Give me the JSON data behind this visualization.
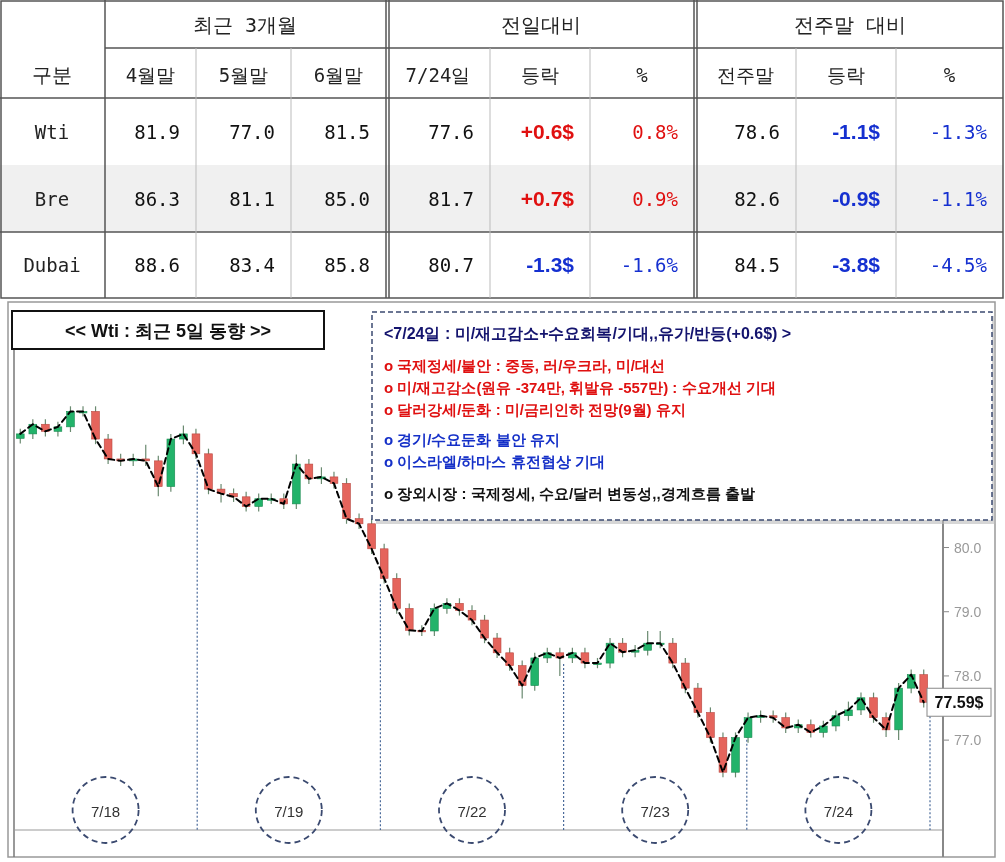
{
  "chart_data": [
    {
      "type": "heatmap",
      "annotations": [
        "구분",
        "최근 3개월",
        "전일대비",
        "전주말 대비"
      ],
      "categories": [
        "4월말",
        "5월말",
        "6월말",
        "7/24일",
        "등락",
        "%",
        "전주말",
        "등락",
        "%"
      ],
      "y_categories": [
        "Wti",
        "Bre",
        "Dubai"
      ],
      "cells": [
        [
          81.9,
          77.0,
          81.5,
          77.6,
          0.6,
          0.8,
          78.6,
          -1.1,
          -1.3
        ],
        [
          86.3,
          81.1,
          85.0,
          81.7,
          0.7,
          0.9,
          82.6,
          -0.9,
          -1.1
        ],
        [
          88.6,
          83.4,
          85.8,
          80.7,
          -1.3,
          -1.6,
          84.5,
          -3.8,
          -4.5
        ]
      ],
      "cell_labels": [
        [
          "81.9",
          "77.0",
          "81.5",
          "77.6",
          "+0.6$",
          "0.8%",
          "78.6",
          "-1.1$",
          "-1.3%"
        ],
        [
          "86.3",
          "81.1",
          "85.0",
          "81.7",
          "+0.7$",
          "0.9%",
          "82.6",
          "-0.9$",
          "-1.1%"
        ],
        [
          "88.6",
          "83.4",
          "85.8",
          "80.7",
          "-1.3$",
          "-1.6%",
          "84.5",
          "-3.8$",
          "-4.5%"
        ]
      ]
    },
    {
      "type": "candlestick",
      "title": "<< Wti : 최근 5일 동향 >>",
      "colors": [
        "#22b36a",
        "#22b36a",
        "#e5645c",
        "#22b36a",
        "#22b36a",
        "#22b36a",
        "#e5645c",
        "#e5645c",
        "#e5645c",
        "#22b36a",
        "#e5645c",
        "#e5645c",
        "#22b36a",
        "#22b36a",
        "#e5645c",
        "#e5645c",
        "#e5645c",
        "#e5645c",
        "#e5645c",
        "#22b36a",
        "#22b36a",
        "#e5645c",
        "#22b36a",
        "#e5645c",
        "#22b36a",
        "#e5645c",
        "#e5645c",
        "#e5645c",
        "#e5645c",
        "#e5645c",
        "#e5645c",
        "#e5645c",
        "#e5645c",
        "#22b36a",
        "#22b36a",
        "#e5645c",
        "#e5645c",
        "#e5645c",
        "#e5645c",
        "#e5645c",
        "#e5645c",
        "#22b36a",
        "#22b36a",
        "#e5645c",
        "#22b36a",
        "#e5645c",
        "#22b36a",
        "#22b36a",
        "#e5645c",
        "#22b36a",
        "#22b36a",
        "#22b36a",
        "#e5645c",
        "#e5645c",
        "#e5645c",
        "#e5645c",
        "#e5645c",
        "#22b36a",
        "#22b36a",
        "#22b36a",
        "#e5645c",
        "#e5645c",
        "#22b36a",
        "#e5645c",
        "#22b36a",
        "#22b36a",
        "#22b36a",
        "#22b36a",
        "#e5645c",
        "#e5645c",
        "#22b36a",
        "#22b36a",
        "#e5645c"
      ],
      "tick_labels": "y",
      "categories": [
        null,
        null,
        null,
        null,
        null,
        null,
        null,
        null,
        null,
        null,
        null,
        null,
        null,
        null,
        null,
        null,
        null,
        null,
        null,
        null,
        null,
        null,
        null,
        null,
        null,
        null,
        null,
        null,
        null,
        null,
        null,
        null,
        null,
        null,
        null,
        null,
        null,
        null,
        null,
        null,
        null,
        null,
        null,
        null,
        null,
        null,
        null,
        null,
        null,
        null,
        null,
        null,
        null,
        null,
        null,
        null,
        null,
        null,
        null,
        null,
        null,
        null,
        null,
        null,
        null,
        null,
        null,
        null,
        null,
        null,
        null,
        null,
        null
      ],
      "ohlc": [
        [
          81.7,
          81.85,
          81.62,
          81.77
        ],
        [
          81.77,
          82.0,
          81.69,
          81.92
        ],
        [
          81.92,
          82.0,
          81.73,
          81.81
        ],
        [
          81.81,
          81.96,
          81.73,
          81.88
        ],
        [
          81.88,
          82.2,
          81.8,
          82.12
        ],
        [
          82.12,
          82.2,
          82.04,
          82.12
        ],
        [
          82.12,
          82.2,
          81.61,
          81.69
        ],
        [
          81.69,
          81.77,
          81.3,
          81.38
        ],
        [
          81.38,
          81.46,
          81.27,
          81.35
        ],
        [
          81.35,
          81.46,
          81.27,
          81.38
        ],
        [
          81.38,
          81.6,
          81.27,
          81.35
        ],
        [
          81.35,
          81.43,
          80.8,
          80.95
        ],
        [
          80.95,
          81.77,
          80.87,
          81.69
        ],
        [
          81.69,
          81.9,
          81.61,
          81.77
        ],
        [
          81.77,
          81.85,
          81.38,
          81.46
        ],
        [
          81.46,
          81.54,
          80.83,
          80.91
        ],
        [
          80.91,
          80.99,
          80.7,
          80.84
        ],
        [
          80.84,
          80.92,
          80.71,
          80.79
        ],
        [
          80.79,
          80.87,
          80.56,
          80.64
        ],
        [
          80.64,
          80.84,
          80.56,
          80.76
        ],
        [
          80.76,
          80.84,
          80.68,
          80.76
        ],
        [
          80.76,
          80.84,
          80.6,
          80.68
        ],
        [
          80.68,
          81.45,
          80.6,
          81.3
        ],
        [
          81.3,
          81.38,
          80.99,
          81.07
        ],
        [
          81.07,
          81.25,
          80.99,
          81.1
        ],
        [
          81.1,
          81.18,
          80.92,
          81.0
        ],
        [
          81.0,
          81.08,
          80.37,
          80.45
        ],
        [
          80.45,
          80.53,
          80.29,
          80.37
        ],
        [
          80.37,
          80.45,
          79.9,
          79.98
        ],
        [
          79.98,
          80.06,
          79.44,
          79.52
        ],
        [
          79.52,
          79.6,
          78.97,
          79.05
        ],
        [
          79.05,
          79.13,
          78.63,
          78.71
        ],
        [
          78.71,
          78.79,
          78.62,
          78.7
        ],
        [
          78.7,
          79.13,
          78.62,
          79.05
        ],
        [
          79.05,
          79.21,
          78.97,
          79.13
        ],
        [
          79.13,
          79.21,
          78.94,
          79.02
        ],
        [
          79.02,
          79.1,
          78.79,
          78.87
        ],
        [
          78.87,
          78.95,
          78.51,
          78.59
        ],
        [
          78.59,
          78.67,
          78.28,
          78.36
        ],
        [
          78.36,
          78.44,
          78.08,
          78.16
        ],
        [
          78.16,
          78.24,
          77.65,
          77.85
        ],
        [
          77.85,
          78.36,
          77.77,
          78.28
        ],
        [
          78.28,
          78.44,
          78.2,
          78.36
        ],
        [
          78.36,
          78.44,
          78.0,
          78.28
        ],
        [
          78.28,
          78.44,
          78.2,
          78.36
        ],
        [
          78.36,
          78.44,
          78.12,
          78.2
        ],
        [
          78.2,
          78.28,
          78.12,
          78.2
        ],
        [
          78.2,
          78.59,
          78.12,
          78.51
        ],
        [
          78.51,
          78.59,
          78.29,
          78.37
        ],
        [
          78.37,
          78.48,
          78.29,
          78.4
        ],
        [
          78.4,
          78.7,
          78.32,
          78.51
        ],
        [
          78.51,
          78.7,
          78.43,
          78.51
        ],
        [
          78.51,
          78.59,
          78.12,
          78.2
        ],
        [
          78.2,
          78.28,
          77.73,
          77.81
        ],
        [
          77.81,
          77.89,
          77.35,
          77.43
        ],
        [
          77.43,
          77.51,
          76.96,
          77.04
        ],
        [
          77.04,
          77.12,
          76.42,
          76.5
        ],
        [
          76.5,
          77.12,
          76.42,
          77.04
        ],
        [
          77.04,
          77.43,
          76.96,
          77.35
        ],
        [
          77.35,
          77.46,
          77.27,
          77.38
        ],
        [
          77.38,
          77.46,
          77.27,
          77.35
        ],
        [
          77.35,
          77.43,
          77.11,
          77.19
        ],
        [
          77.19,
          77.32,
          77.11,
          77.24
        ],
        [
          77.24,
          77.32,
          77.04,
          77.12
        ],
        [
          77.12,
          77.3,
          77.04,
          77.22
        ],
        [
          77.22,
          77.46,
          77.14,
          77.38
        ],
        [
          77.38,
          77.6,
          77.3,
          77.47
        ],
        [
          77.47,
          77.74,
          77.39,
          77.66
        ],
        [
          77.66,
          77.74,
          77.27,
          77.35
        ],
        [
          77.35,
          77.43,
          77.05,
          77.16
        ],
        [
          77.16,
          77.89,
          77.0,
          77.81
        ],
        [
          77.81,
          78.1,
          77.73,
          78.02
        ],
        [
          78.02,
          78.1,
          77.51,
          77.59
        ]
      ],
      "series": [
        {
          "type": "line",
          "color": "#000000",
          "line_style": "dashed",
          "values": [
            81.77,
            81.92,
            81.81,
            81.88,
            82.12,
            82.12,
            81.69,
            81.38,
            81.35,
            81.38,
            81.35,
            80.95,
            81.69,
            81.77,
            81.46,
            80.91,
            80.84,
            80.79,
            80.64,
            80.76,
            80.76,
            80.68,
            81.3,
            81.07,
            81.1,
            81.0,
            80.45,
            80.37,
            79.98,
            79.52,
            79.05,
            78.71,
            78.7,
            79.05,
            79.13,
            79.02,
            78.87,
            78.59,
            78.36,
            78.16,
            77.85,
            78.28,
            78.36,
            78.28,
            78.36,
            78.2,
            78.2,
            78.51,
            78.37,
            78.4,
            78.51,
            78.51,
            78.2,
            77.81,
            77.43,
            77.04,
            76.5,
            77.04,
            77.35,
            77.38,
            77.35,
            77.19,
            77.24,
            77.12,
            77.22,
            77.38,
            77.47,
            77.66,
            77.35,
            77.16,
            77.81,
            78.02,
            77.59
          ]
        }
      ],
      "ylim": [
        75.6,
        83.7
      ],
      "yticks": [
        {
          "value": 77,
          "label": "77.0"
        },
        {
          "value": 78,
          "label": "78.0"
        },
        {
          "value": 79,
          "label": "79.0"
        },
        {
          "value": 80,
          "label": "80.0"
        }
      ],
      "annotations": [
        "<7/24일 : 미/재고감소+수요회복/기대,,유가/반등(+0.6$) >",
        "o 국제정세/불안 : 중동, 러/우크라, 미/대선",
        "o 미/재고감소(원유 -374만, 휘발유 -557만) : 수요개선 기대",
        "o 달러강세/둔화 : 미/금리인하 전망(9월) 유지",
        "o 경기/수요둔화 불안 유지",
        "o 이스라엘/하마스 휴전협상 기대",
        "o 장외시장 : 국제정세, 수요/달러 변동성,,경계흐름 출발",
        "7/18",
        "7/19",
        "7/22",
        "7/23",
        "7/24",
        "77.59$"
      ]
    }
  ]
}
